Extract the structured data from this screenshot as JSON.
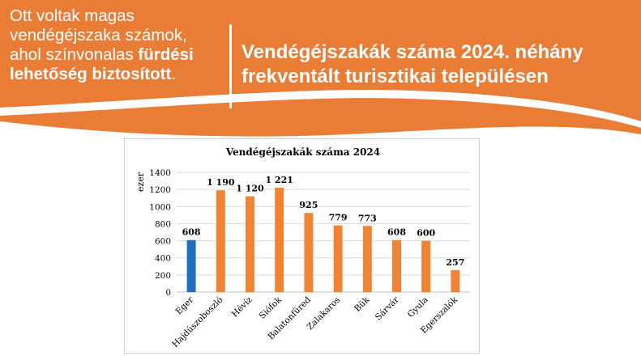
{
  "header": {
    "left_text_plain": "Ott voltak magas vendégéjszaka számok, ahol színvonalas ",
    "left_text_bold": "fürdési lehetőség biztosított",
    "left_text_end": ".",
    "title_line1": "Vendégéjszakák száma 2024. néhány",
    "title_line2": "frekventált turisztikai településen"
  },
  "colors": {
    "banner": "#ea7d36",
    "highlight_bar": "#1f6fbf",
    "bar": "#ee8434",
    "gridline": "#d9d9d9"
  },
  "chart_data": {
    "type": "bar",
    "title": "Vendégéjszakák száma 2024",
    "ylabel": "ezer",
    "xlabel": "",
    "ylim": [
      0,
      1400
    ],
    "yticks": [
      0,
      200,
      400,
      600,
      800,
      1000,
      1200,
      1400
    ],
    "grid": true,
    "categories": [
      "Eger",
      "Hajdúszoboszló",
      "Hévíz",
      "Siófok",
      "Balatonfüred",
      "Zalakaros",
      "Bük",
      "Sárvár",
      "Gyula",
      "Egerszalók"
    ],
    "values": [
      608,
      1190,
      1120,
      1221,
      925,
      779,
      773,
      608,
      600,
      257
    ],
    "data_labels": [
      "608",
      "1 190",
      "1 120",
      "1 221",
      "925",
      "779",
      "773",
      "608",
      "600",
      "257"
    ],
    "highlighted_category": "Eger"
  }
}
